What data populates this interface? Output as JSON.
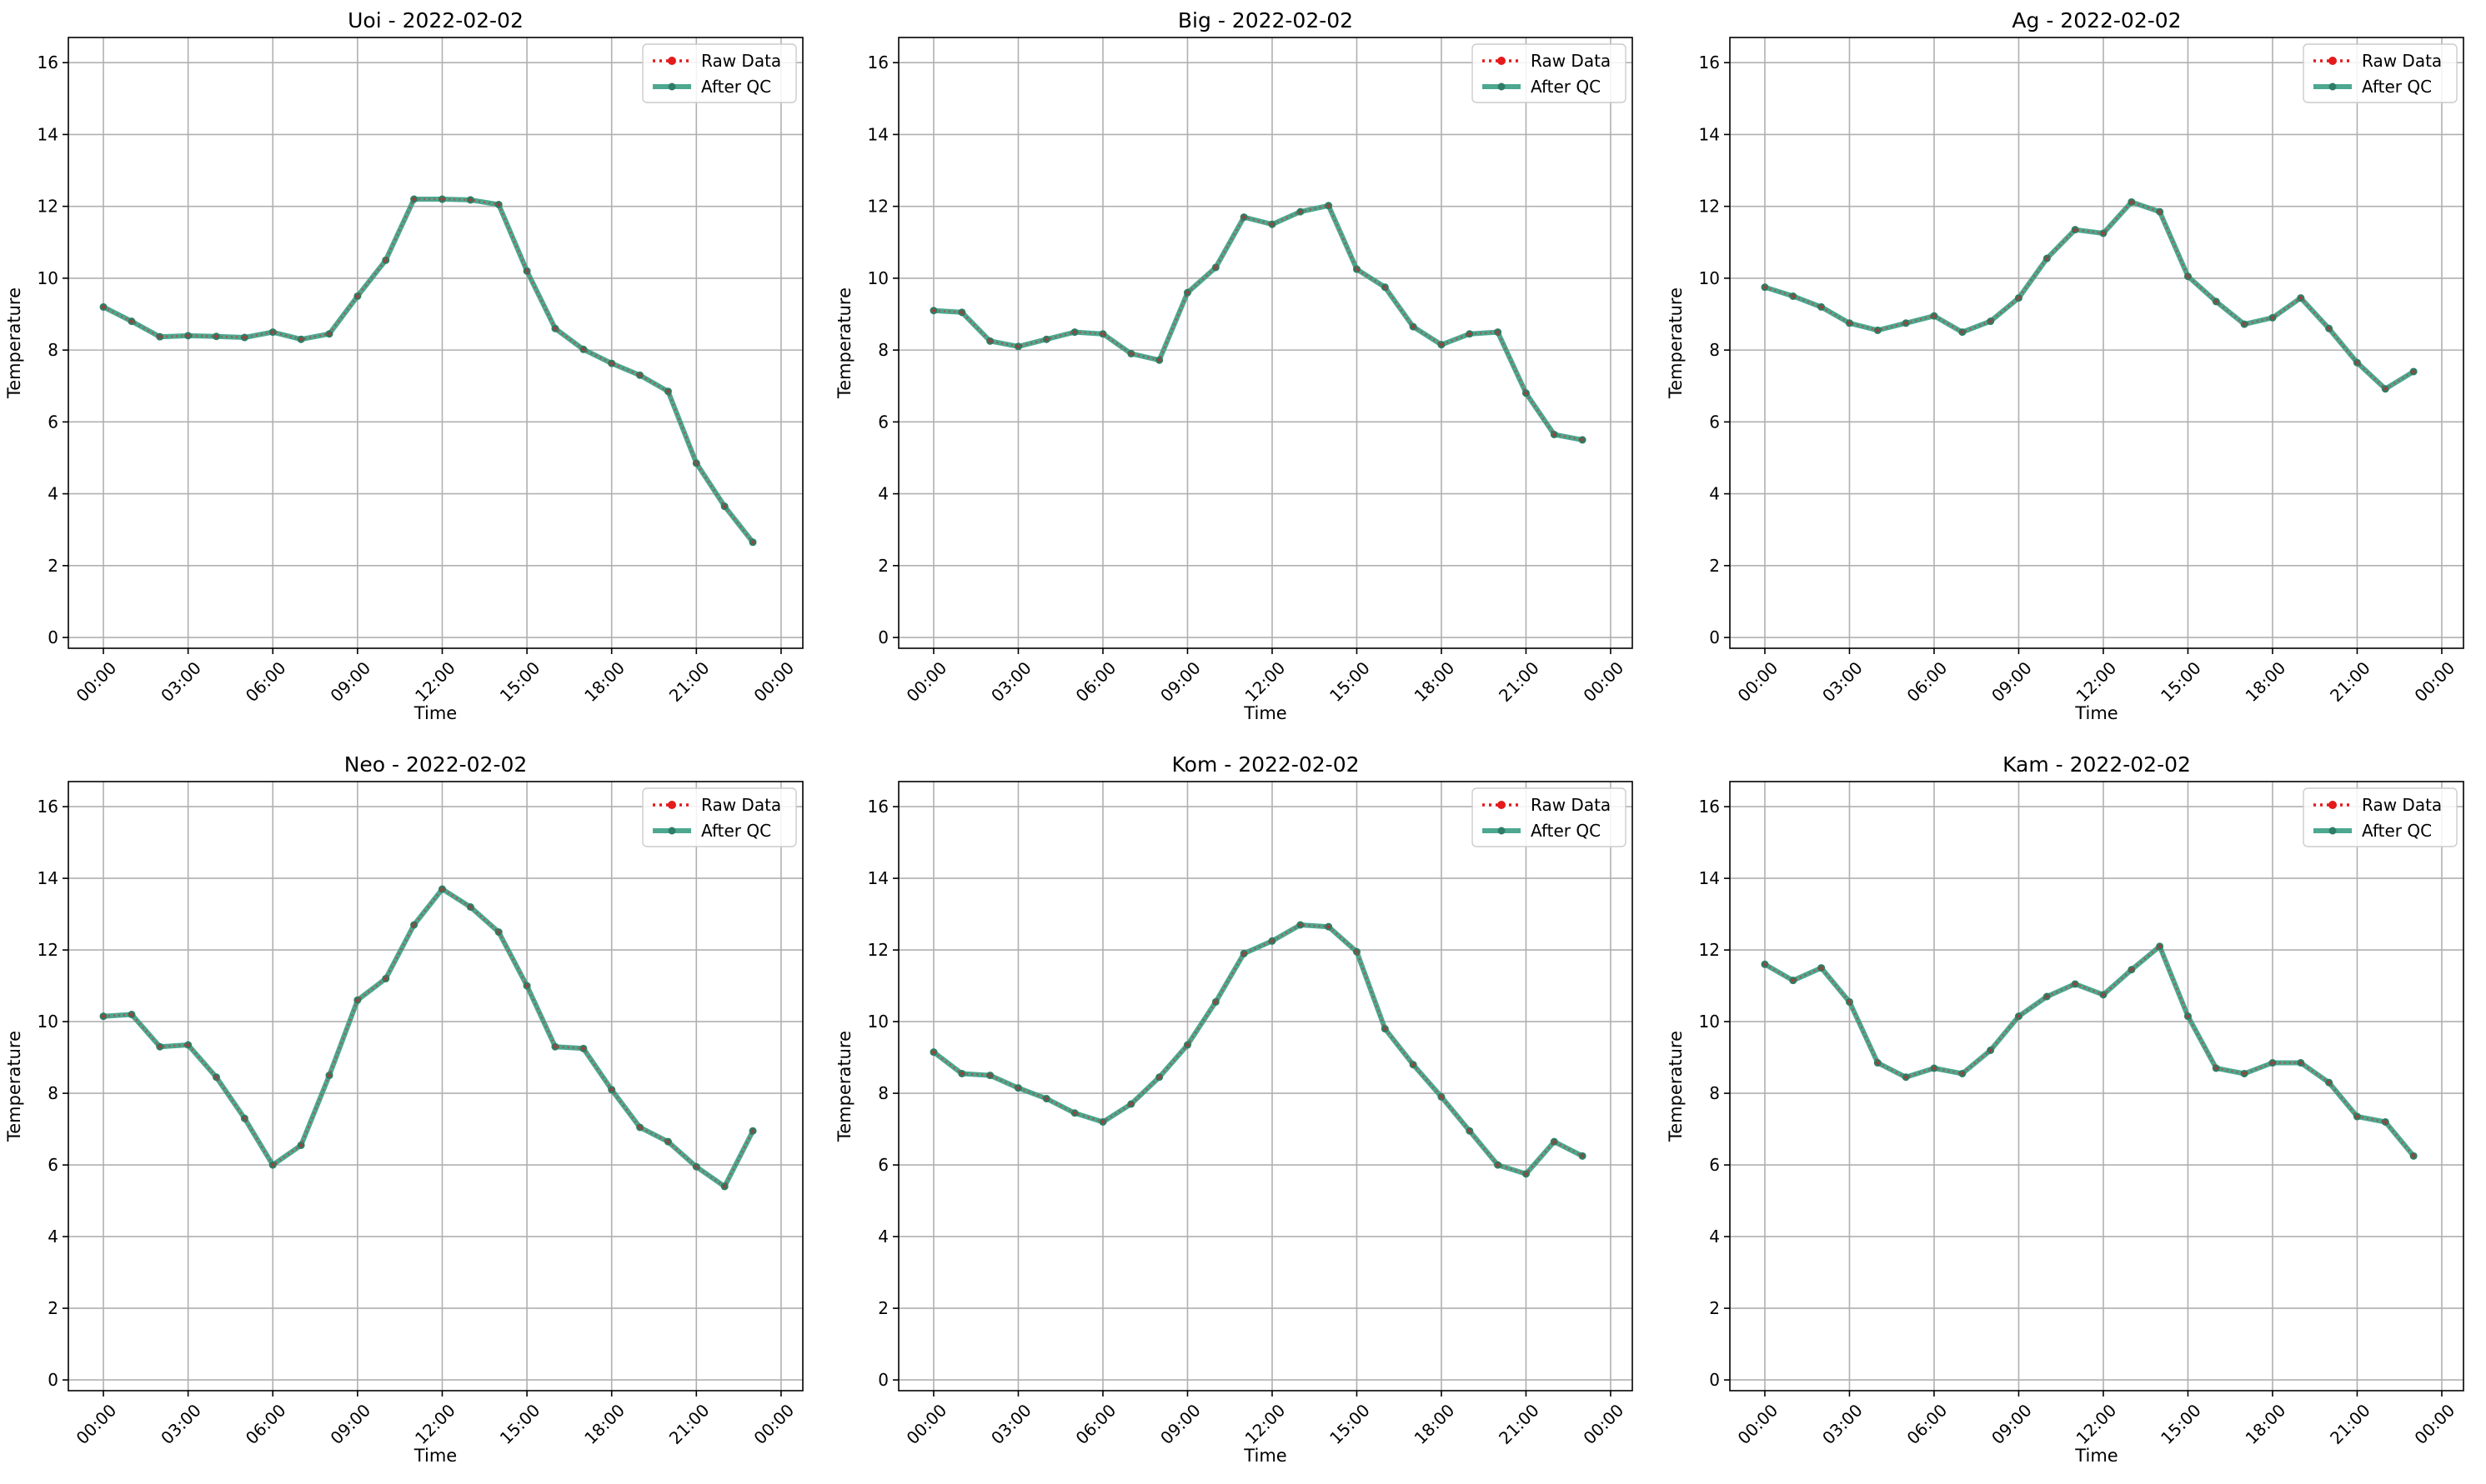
{
  "chart_data": [
    {
      "type": "line",
      "title": "Uoi - 2022-02-02",
      "xlabel": "Time",
      "ylabel": "Temperature",
      "ylim": [
        -0.3,
        16.7
      ],
      "yticks": [
        "0",
        "2",
        "4",
        "6",
        "8",
        "10",
        "12",
        "14",
        "16"
      ],
      "xticks": [
        "00:00",
        "03:00",
        "06:00",
        "09:00",
        "12:00",
        "15:00",
        "18:00",
        "21:00",
        "00:00"
      ],
      "grid": true,
      "legend_position": "top-right",
      "series": [
        {
          "name": "Raw Data",
          "color": "#e41a1c",
          "style": "dotted",
          "values": [
            9.2,
            8.8,
            8.37,
            8.4,
            8.38,
            8.35,
            8.5,
            8.3,
            8.45,
            9.5,
            10.5,
            12.2,
            12.2,
            12.18,
            12.05,
            10.2,
            8.6,
            8.02,
            7.63,
            7.3,
            6.85,
            4.85,
            3.65,
            2.65
          ]
        },
        {
          "name": "After QC",
          "color": "#3a9e84",
          "style": "solid",
          "values": [
            9.2,
            8.8,
            8.37,
            8.4,
            8.38,
            8.35,
            8.5,
            8.3,
            8.45,
            9.5,
            10.5,
            12.2,
            12.2,
            12.18,
            12.05,
            10.2,
            8.6,
            8.02,
            7.63,
            7.3,
            6.85,
            4.85,
            3.65,
            2.65
          ]
        }
      ]
    },
    {
      "type": "line",
      "title": "Big - 2022-02-02",
      "xlabel": "Time",
      "ylabel": "Temperature",
      "ylim": [
        -0.3,
        16.7
      ],
      "yticks": [
        "0",
        "2",
        "4",
        "6",
        "8",
        "10",
        "12",
        "14",
        "16"
      ],
      "xticks": [
        "00:00",
        "03:00",
        "06:00",
        "09:00",
        "12:00",
        "15:00",
        "18:00",
        "21:00",
        "00:00"
      ],
      "grid": true,
      "legend_position": "top-right",
      "series": [
        {
          "name": "Raw Data",
          "color": "#e41a1c",
          "style": "dotted",
          "values": [
            9.1,
            9.05,
            8.25,
            8.1,
            8.3,
            8.5,
            8.45,
            7.9,
            7.72,
            9.6,
            10.3,
            11.7,
            11.5,
            11.85,
            12.02,
            10.25,
            9.75,
            8.65,
            8.15,
            8.45,
            8.5,
            6.8,
            5.65,
            5.5
          ]
        },
        {
          "name": "After QC",
          "color": "#3a9e84",
          "style": "solid",
          "values": [
            9.1,
            9.05,
            8.25,
            8.1,
            8.3,
            8.5,
            8.45,
            7.9,
            7.72,
            9.6,
            10.3,
            11.7,
            11.5,
            11.85,
            12.02,
            10.25,
            9.75,
            8.65,
            8.15,
            8.45,
            8.5,
            6.8,
            5.65,
            5.5
          ]
        }
      ]
    },
    {
      "type": "line",
      "title": "Ag - 2022-02-02",
      "xlabel": "Time",
      "ylabel": "Temperature",
      "ylim": [
        -0.3,
        16.7
      ],
      "yticks": [
        "0",
        "2",
        "4",
        "6",
        "8",
        "10",
        "12",
        "14",
        "16"
      ],
      "xticks": [
        "00:00",
        "03:00",
        "06:00",
        "09:00",
        "12:00",
        "15:00",
        "18:00",
        "21:00",
        "00:00"
      ],
      "grid": true,
      "legend_position": "top-right",
      "series": [
        {
          "name": "Raw Data",
          "color": "#e41a1c",
          "style": "dotted",
          "values": [
            9.75,
            9.5,
            9.2,
            8.75,
            8.55,
            8.75,
            8.95,
            8.5,
            8.8,
            9.45,
            10.55,
            11.35,
            11.25,
            12.12,
            11.85,
            10.05,
            9.35,
            8.72,
            8.9,
            9.45,
            8.6,
            7.65,
            6.92,
            7.4
          ]
        },
        {
          "name": "After QC",
          "color": "#3a9e84",
          "style": "solid",
          "values": [
            9.75,
            9.5,
            9.2,
            8.75,
            8.55,
            8.75,
            8.95,
            8.5,
            8.8,
            9.45,
            10.55,
            11.35,
            11.25,
            12.12,
            11.85,
            10.05,
            9.35,
            8.72,
            8.9,
            9.45,
            8.6,
            7.65,
            6.92,
            7.4
          ]
        }
      ]
    },
    {
      "type": "line",
      "title": "Neo - 2022-02-02",
      "xlabel": "Time",
      "ylabel": "Temperature",
      "ylim": [
        -0.3,
        16.7
      ],
      "yticks": [
        "0",
        "2",
        "4",
        "6",
        "8",
        "10",
        "12",
        "14",
        "16"
      ],
      "xticks": [
        "00:00",
        "03:00",
        "06:00",
        "09:00",
        "12:00",
        "15:00",
        "18:00",
        "21:00",
        "00:00"
      ],
      "grid": true,
      "legend_position": "top-right",
      "series": [
        {
          "name": "Raw Data",
          "color": "#e41a1c",
          "style": "dotted",
          "values": [
            10.15,
            10.2,
            9.3,
            9.35,
            8.45,
            7.3,
            6.0,
            6.55,
            8.5,
            10.6,
            11.2,
            12.7,
            13.7,
            13.2,
            12.5,
            11.0,
            9.3,
            9.25,
            8.1,
            7.05,
            6.65,
            5.95,
            5.4,
            6.95
          ]
        },
        {
          "name": "After QC",
          "color": "#3a9e84",
          "style": "solid",
          "values": [
            10.15,
            10.2,
            9.3,
            9.35,
            8.45,
            7.3,
            6.0,
            6.55,
            8.5,
            10.6,
            11.2,
            12.7,
            13.7,
            13.2,
            12.5,
            11.0,
            9.3,
            9.25,
            8.1,
            7.05,
            6.65,
            5.95,
            5.4,
            6.95
          ]
        }
      ]
    },
    {
      "type": "line",
      "title": "Kom - 2022-02-02",
      "xlabel": "Time",
      "ylabel": "Temperature",
      "ylim": [
        -0.3,
        16.7
      ],
      "yticks": [
        "0",
        "2",
        "4",
        "6",
        "8",
        "10",
        "12",
        "14",
        "16"
      ],
      "xticks": [
        "00:00",
        "03:00",
        "06:00",
        "09:00",
        "12:00",
        "15:00",
        "18:00",
        "21:00",
        "00:00"
      ],
      "grid": true,
      "legend_position": "top-right",
      "series": [
        {
          "name": "Raw Data",
          "color": "#e41a1c",
          "style": "dotted",
          "values": [
            9.15,
            8.55,
            8.5,
            8.15,
            7.85,
            7.45,
            7.2,
            7.7,
            8.45,
            9.35,
            10.55,
            11.9,
            12.25,
            12.7,
            12.65,
            11.95,
            9.8,
            8.8,
            7.9,
            6.95,
            6.0,
            5.75,
            6.65,
            6.25
          ]
        },
        {
          "name": "After QC",
          "color": "#3a9e84",
          "style": "solid",
          "values": [
            9.15,
            8.55,
            8.5,
            8.15,
            7.85,
            7.45,
            7.2,
            7.7,
            8.45,
            9.35,
            10.55,
            11.9,
            12.25,
            12.7,
            12.65,
            11.95,
            9.8,
            8.8,
            7.9,
            6.95,
            6.0,
            5.75,
            6.65,
            6.25
          ]
        }
      ]
    },
    {
      "type": "line",
      "title": "Kam - 2022-02-02",
      "xlabel": "Time",
      "ylabel": "Temperature",
      "ylim": [
        -0.3,
        16.7
      ],
      "yticks": [
        "0",
        "2",
        "4",
        "6",
        "8",
        "10",
        "12",
        "14",
        "16"
      ],
      "xticks": [
        "00:00",
        "03:00",
        "06:00",
        "09:00",
        "12:00",
        "15:00",
        "18:00",
        "21:00",
        "00:00"
      ],
      "grid": true,
      "legend_position": "top-right",
      "series": [
        {
          "name": "Raw Data",
          "color": "#e41a1c",
          "style": "dotted",
          "values": [
            11.6,
            11.15,
            11.5,
            10.55,
            8.85,
            8.45,
            8.7,
            8.55,
            9.2,
            10.15,
            10.7,
            11.05,
            10.75,
            11.45,
            12.1,
            10.15,
            8.7,
            8.55,
            8.85,
            8.85,
            8.3,
            7.35,
            7.2,
            6.25
          ]
        },
        {
          "name": "After QC",
          "color": "#3a9e84",
          "style": "solid",
          "values": [
            11.6,
            11.15,
            11.5,
            10.55,
            8.85,
            8.45,
            8.7,
            8.55,
            9.2,
            10.15,
            10.7,
            11.05,
            10.75,
            11.45,
            12.1,
            10.15,
            8.7,
            8.55,
            8.85,
            8.85,
            8.3,
            7.35,
            7.2,
            6.25
          ]
        }
      ]
    }
  ]
}
